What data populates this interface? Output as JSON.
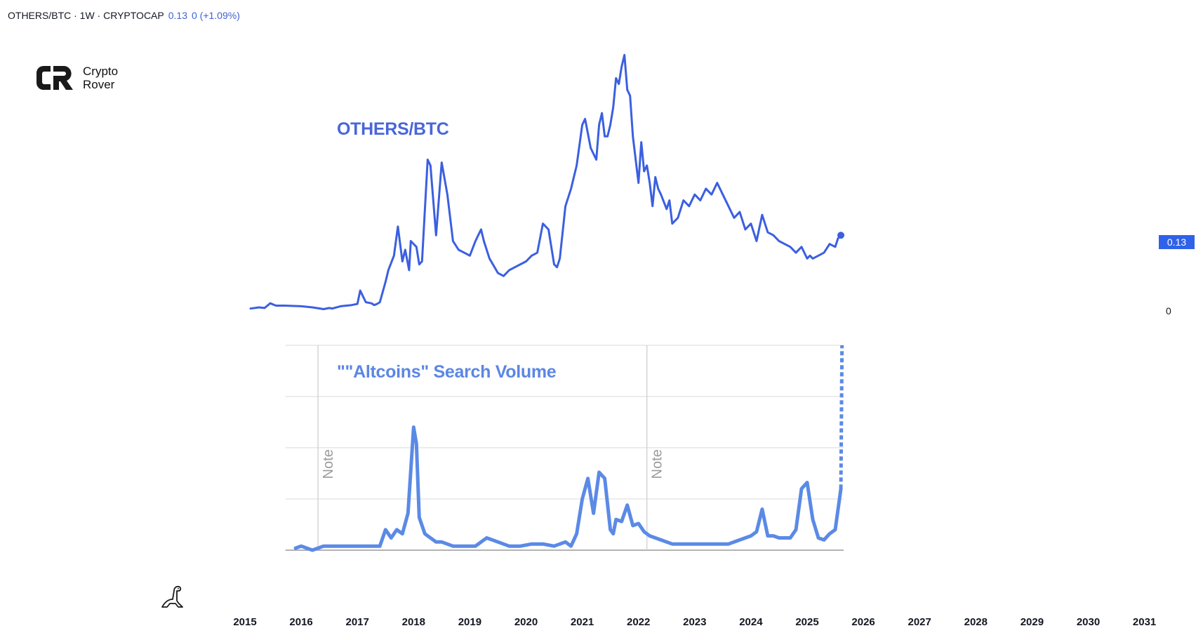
{
  "header": {
    "symbol": "OTHERS/BTC · 1W · CRYPTOCAP",
    "price": "0.13",
    "change": "0 (+1.09%)"
  },
  "brand": {
    "line1": "Crypto",
    "line2": "Rover"
  },
  "price_scale": {
    "current_label": "0.13",
    "zero_label": "0"
  },
  "colors": {
    "main_line": "#3b5fe0",
    "search_line": "#5b8ae6",
    "price_tag": "#2f62e8",
    "grid": "#d9d9d9"
  },
  "chart_data": [
    {
      "type": "line",
      "title": "OTHERS/BTC",
      "xlabel": "",
      "ylabel": "",
      "xlim": [
        2014.5,
        2031.5
      ],
      "ylim": [
        0,
        0.45
      ],
      "x_ticks": [
        "2015",
        "2016",
        "2017",
        "2018",
        "2019",
        "2020",
        "2021",
        "2022",
        "2023",
        "2024",
        "2025",
        "2026",
        "2027",
        "2028",
        "2029",
        "2030",
        "2031"
      ],
      "series": [
        {
          "name": "OTHERS/BTC",
          "x": [
            2015.1,
            2015.25,
            2015.35,
            2015.45,
            2015.55,
            2015.7,
            2016.0,
            2016.2,
            2016.4,
            2016.5,
            2016.55,
            2016.7,
            2016.9,
            2017.0,
            2017.05,
            2017.15,
            2017.25,
            2017.3,
            2017.35,
            2017.4,
            2017.5,
            2017.55,
            2017.65,
            2017.72,
            2017.8,
            2017.85,
            2017.92,
            2017.95,
            2018.05,
            2018.1,
            2018.15,
            2018.25,
            2018.3,
            2018.4,
            2018.5,
            2018.6,
            2018.7,
            2018.8,
            2018.9,
            2019.0,
            2019.1,
            2019.2,
            2019.25,
            2019.35,
            2019.5,
            2019.6,
            2019.7,
            2019.8,
            2020.0,
            2020.1,
            2020.2,
            2020.3,
            2020.4,
            2020.5,
            2020.55,
            2020.6,
            2020.7,
            2020.8,
            2020.9,
            2021.0,
            2021.05,
            2021.15,
            2021.25,
            2021.3,
            2021.35,
            2021.4,
            2021.45,
            2021.5,
            2021.55,
            2021.6,
            2021.65,
            2021.7,
            2021.75,
            2021.8,
            2021.85,
            2021.9,
            2022.0,
            2022.05,
            2022.1,
            2022.15,
            2022.2,
            2022.25,
            2022.3,
            2022.35,
            2022.4,
            2022.5,
            2022.55,
            2022.6,
            2022.7,
            2022.8,
            2022.9,
            2023.0,
            2023.1,
            2023.2,
            2023.3,
            2023.4,
            2023.5,
            2023.6,
            2023.7,
            2023.8,
            2023.9,
            2024.0,
            2024.1,
            2024.2,
            2024.3,
            2024.4,
            2024.5,
            2024.6,
            2024.7,
            2024.8,
            2024.9,
            2025.0,
            2025.05,
            2025.1,
            2025.2,
            2025.3,
            2025.4,
            2025.5,
            2025.55,
            2025.6
          ],
          "values": [
            0.004,
            0.006,
            0.005,
            0.013,
            0.009,
            0.009,
            0.008,
            0.006,
            0.003,
            0.005,
            0.004,
            0.008,
            0.01,
            0.012,
            0.035,
            0.015,
            0.013,
            0.01,
            0.012,
            0.015,
            0.05,
            0.07,
            0.095,
            0.145,
            0.085,
            0.105,
            0.07,
            0.12,
            0.11,
            0.08,
            0.085,
            0.26,
            0.25,
            0.13,
            0.255,
            0.2,
            0.12,
            0.105,
            0.1,
            0.095,
            0.12,
            0.14,
            0.12,
            0.09,
            0.065,
            0.06,
            0.07,
            0.075,
            0.085,
            0.095,
            0.1,
            0.15,
            0.14,
            0.08,
            0.075,
            0.09,
            0.18,
            0.21,
            0.25,
            0.32,
            0.33,
            0.28,
            0.26,
            0.32,
            0.34,
            0.3,
            0.3,
            0.32,
            0.35,
            0.4,
            0.39,
            0.42,
            0.44,
            0.38,
            0.37,
            0.3,
            0.22,
            0.29,
            0.24,
            0.25,
            0.22,
            0.18,
            0.23,
            0.21,
            0.2,
            0.175,
            0.19,
            0.15,
            0.16,
            0.19,
            0.18,
            0.2,
            0.19,
            0.21,
            0.2,
            0.22,
            0.2,
            0.18,
            0.16,
            0.17,
            0.14,
            0.15,
            0.12,
            0.165,
            0.135,
            0.13,
            0.12,
            0.115,
            0.11,
            0.1,
            0.11,
            0.09,
            0.095,
            0.09,
            0.095,
            0.1,
            0.115,
            0.11,
            0.125,
            0.13
          ]
        }
      ]
    },
    {
      "type": "line",
      "title": "\"\"Altcoins\" Search Volume",
      "annotations": [
        "Note",
        "Note"
      ],
      "xlim": [
        2014.5,
        2031.5
      ],
      "ylim": [
        0,
        100
      ],
      "series": [
        {
          "name": "Altcoins search volume",
          "x": [
            2015.9,
            2016.0,
            2016.2,
            2016.4,
            2016.6,
            2016.8,
            2017.0,
            2017.2,
            2017.4,
            2017.5,
            2017.6,
            2017.7,
            2017.8,
            2017.9,
            2018.0,
            2018.05,
            2018.1,
            2018.2,
            2018.3,
            2018.4,
            2018.5,
            2018.7,
            2018.9,
            2019.1,
            2019.3,
            2019.5,
            2019.7,
            2019.9,
            2020.1,
            2020.3,
            2020.5,
            2020.7,
            2020.8,
            2020.9,
            2021.0,
            2021.1,
            2021.2,
            2021.3,
            2021.4,
            2021.5,
            2021.55,
            2021.6,
            2021.7,
            2021.8,
            2021.9,
            2022.0,
            2022.05,
            2022.1,
            2022.2,
            2022.4,
            2022.6,
            2022.8,
            2023.0,
            2023.2,
            2023.4,
            2023.6,
            2023.8,
            2024.0,
            2024.1,
            2024.2,
            2024.3,
            2024.4,
            2024.5,
            2024.7,
            2024.8,
            2024.9,
            2025.0,
            2025.1,
            2025.2,
            2025.3,
            2025.4,
            2025.5,
            2025.6
          ],
          "values": [
            1,
            2,
            0,
            2,
            2,
            2,
            2,
            2,
            2,
            10,
            6,
            10,
            8,
            18,
            60,
            52,
            16,
            8,
            6,
            4,
            4,
            2,
            2,
            2,
            6,
            4,
            2,
            2,
            3,
            3,
            2,
            4,
            2,
            8,
            25,
            35,
            18,
            38,
            35,
            10,
            8,
            15,
            14,
            22,
            12,
            13,
            11,
            9,
            7,
            5,
            3,
            3,
            3,
            3,
            3,
            3,
            5,
            7,
            9,
            20,
            7,
            7,
            6,
            6,
            10,
            30,
            33,
            15,
            6,
            5,
            8,
            10,
            30
          ]
        },
        {
          "name": "Altcoins search volume (projected)",
          "style": "dotted",
          "x": [
            2025.6,
            2025.62
          ],
          "values": [
            30,
            100
          ]
        }
      ]
    }
  ]
}
